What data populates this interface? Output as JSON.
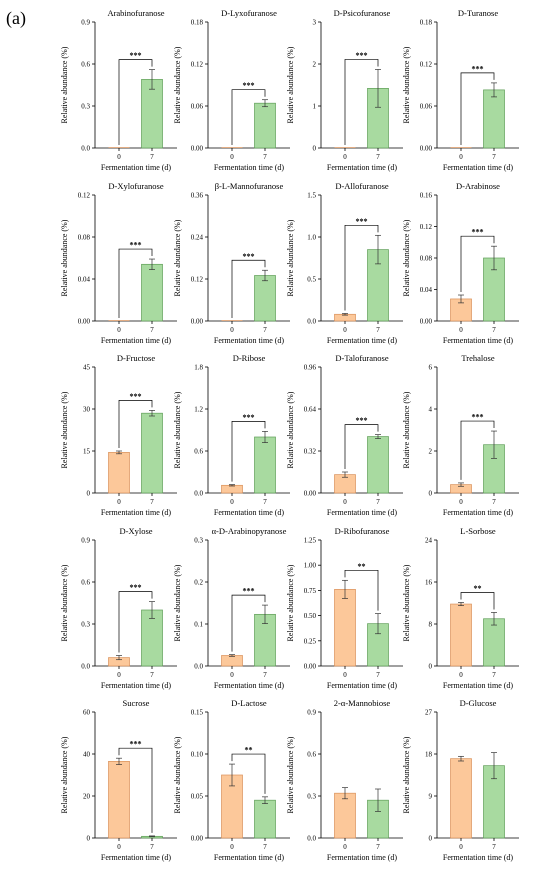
{
  "panel_label": "(a)",
  "colors": {
    "day0_fill": "#fcc89a",
    "day0_stroke": "#d9915a",
    "day7_fill": "#a8daa0",
    "day7_stroke": "#5f9e57"
  },
  "chart_data": [
    {
      "type": "bar",
      "title": "Arabinofuranose",
      "xlabel": "Fermentation time (d)",
      "ylabel": "Relative abundance (%)",
      "categories": [
        "0",
        "7"
      ],
      "values": [
        0,
        0.49
      ],
      "errors": [
        0,
        0.07
      ],
      "ylim": [
        0,
        0.9
      ],
      "yticks": [
        "0.0",
        "0.3",
        "0.6",
        "0.9"
      ],
      "significance": "***"
    },
    {
      "type": "bar",
      "title": "D-Lyxofuranose",
      "xlabel": "Fermentation time (d)",
      "ylabel": "Relative abundance (%)",
      "categories": [
        "0",
        "7"
      ],
      "values": [
        0,
        0.064
      ],
      "errors": [
        0,
        0.005
      ],
      "ylim": [
        0,
        0.18
      ],
      "yticks": [
        "0.00",
        "0.06",
        "0.12",
        "0.18"
      ],
      "significance": "***"
    },
    {
      "type": "bar",
      "title": "D-Psicofuranose",
      "xlabel": "Fermentation time (d)",
      "ylabel": "Relative abundance (%)",
      "categories": [
        "0",
        "7"
      ],
      "values": [
        0,
        1.42
      ],
      "errors": [
        0,
        0.45
      ],
      "ylim": [
        0,
        3
      ],
      "yticks": [
        "0",
        "1",
        "2",
        "3"
      ],
      "significance": "***"
    },
    {
      "type": "bar",
      "title": "D-Turanose",
      "xlabel": "Fermentation time (d)",
      "ylabel": "Relative abundance (%)",
      "categories": [
        "0",
        "7"
      ],
      "values": [
        0,
        0.083
      ],
      "errors": [
        0,
        0.01
      ],
      "ylim": [
        0,
        0.18
      ],
      "yticks": [
        "0.00",
        "0.06",
        "0.12",
        "0.18"
      ],
      "significance": "***"
    },
    {
      "type": "bar",
      "title": "D-Xylofuranose",
      "xlabel": "Fermentation time (d)",
      "ylabel": "Relative abundance (%)",
      "categories": [
        "0",
        "7"
      ],
      "values": [
        0,
        0.054
      ],
      "errors": [
        0,
        0.005
      ],
      "ylim": [
        0,
        0.12
      ],
      "yticks": [
        "0.00",
        "0.04",
        "0.08",
        "0.12"
      ],
      "significance": "***"
    },
    {
      "type": "bar",
      "title": "β-L-Mannofuranose",
      "xlabel": "Fermentation time (d)",
      "ylabel": "Relative abundance (%)",
      "categories": [
        "0",
        "7"
      ],
      "values": [
        0,
        0.13
      ],
      "errors": [
        0,
        0.015
      ],
      "ylim": [
        0,
        0.36
      ],
      "yticks": [
        "0.00",
        "0.12",
        "0.24",
        "0.36"
      ],
      "significance": "***"
    },
    {
      "type": "bar",
      "title": "D-Allofuranose",
      "xlabel": "Fermentation time (d)",
      "ylabel": "Relative abundance (%)",
      "categories": [
        "0",
        "7"
      ],
      "values": [
        0.08,
        0.85
      ],
      "errors": [
        0.01,
        0.17
      ],
      "ylim": [
        0,
        1.5
      ],
      "yticks": [
        "0.0",
        "0.5",
        "1.0",
        "1.5"
      ],
      "significance": "***"
    },
    {
      "type": "bar",
      "title": "D-Arabinose",
      "xlabel": "Fermentation time (d)",
      "ylabel": "Relative abundance (%)",
      "categories": [
        "0",
        "7"
      ],
      "values": [
        0.028,
        0.08
      ],
      "errors": [
        0.005,
        0.015
      ],
      "ylim": [
        0,
        0.16
      ],
      "yticks": [
        "0.00",
        "0.04",
        "0.08",
        "0.12",
        "0.16"
      ],
      "significance": "***"
    },
    {
      "type": "bar",
      "title": "D-Fructose",
      "xlabel": "Fermentation time (d)",
      "ylabel": "Relative abundance (%)",
      "categories": [
        "0",
        "7"
      ],
      "values": [
        14.5,
        28.5
      ],
      "errors": [
        0.5,
        1.0
      ],
      "ylim": [
        0,
        45
      ],
      "yticks": [
        "0",
        "15",
        "30",
        "45"
      ],
      "significance": "***"
    },
    {
      "type": "bar",
      "title": "D-Ribose",
      "xlabel": "Fermentation time (d)",
      "ylabel": "Relative abundance (%)",
      "categories": [
        "0",
        "7"
      ],
      "values": [
        0.11,
        0.8
      ],
      "errors": [
        0.01,
        0.08
      ],
      "ylim": [
        0,
        1.8
      ],
      "yticks": [
        "0.0",
        "0.6",
        "1.2",
        "1.8"
      ],
      "significance": "***"
    },
    {
      "type": "bar",
      "title": "D-Talofuranose",
      "xlabel": "Fermentation time (d)",
      "ylabel": "Relative abundance (%)",
      "categories": [
        "0",
        "7"
      ],
      "values": [
        0.14,
        0.43
      ],
      "errors": [
        0.02,
        0.015
      ],
      "ylim": [
        0,
        0.96
      ],
      "yticks": [
        "0.00",
        "0.32",
        "0.64",
        "0.96"
      ],
      "significance": "***"
    },
    {
      "type": "bar",
      "title": "Trehalose",
      "xlabel": "Fermentation time (d)",
      "ylabel": "Relative abundance (%)",
      "categories": [
        "0",
        "7"
      ],
      "values": [
        0.4,
        2.3
      ],
      "errors": [
        0.08,
        0.65
      ],
      "ylim": [
        0,
        6
      ],
      "yticks": [
        "0",
        "2",
        "4",
        "6"
      ],
      "significance": "***"
    },
    {
      "type": "bar",
      "title": "D-Xylose",
      "xlabel": "Fermentation time (d)",
      "ylabel": "Relative abundance (%)",
      "categories": [
        "0",
        "7"
      ],
      "values": [
        0.06,
        0.4
      ],
      "errors": [
        0.015,
        0.06
      ],
      "ylim": [
        0,
        0.9
      ],
      "yticks": [
        "0.0",
        "0.3",
        "0.6",
        "0.9"
      ],
      "significance": "***"
    },
    {
      "type": "bar",
      "title": "α-D-Arabinopyranose",
      "xlabel": "Fermentation time (d)",
      "ylabel": "Relative abundance (%)",
      "categories": [
        "0",
        "7"
      ],
      "values": [
        0.025,
        0.123
      ],
      "errors": [
        0.002,
        0.022
      ],
      "ylim": [
        0,
        0.3
      ],
      "yticks": [
        "0.0",
        "0.1",
        "0.2",
        "0.3"
      ],
      "significance": "***"
    },
    {
      "type": "bar",
      "title": "D-Ribofuranose",
      "xlabel": "Fermentation time (d)",
      "ylabel": "Relative abundance (%)",
      "categories": [
        "0",
        "7"
      ],
      "values": [
        0.76,
        0.42
      ],
      "errors": [
        0.09,
        0.1
      ],
      "ylim": [
        0,
        1.25
      ],
      "yticks": [
        "0.00",
        "0.25",
        "0.50",
        "0.75",
        "1.00",
        "1.25"
      ],
      "significance": "**"
    },
    {
      "type": "bar",
      "title": "L-Sorbose",
      "xlabel": "Fermentation time (d)",
      "ylabel": "Relative abundance (%)",
      "categories": [
        "0",
        "7"
      ],
      "values": [
        11.8,
        9.0
      ],
      "errors": [
        0.3,
        1.2
      ],
      "ylim": [
        0,
        24
      ],
      "yticks": [
        "0",
        "8",
        "16",
        "24"
      ],
      "significance": "**"
    },
    {
      "type": "bar",
      "title": "Sucrose",
      "xlabel": "Fermentation time (d)",
      "ylabel": "Relative abundance (%)",
      "categories": [
        "0",
        "7"
      ],
      "values": [
        36.5,
        0.8
      ],
      "errors": [
        1.5,
        0.2
      ],
      "ylim": [
        0,
        60
      ],
      "yticks": [
        "0",
        "20",
        "40",
        "60"
      ],
      "significance": "***"
    },
    {
      "type": "bar",
      "title": "D-Lactose",
      "xlabel": "Fermentation time (d)",
      "ylabel": "Relative abundance (%)",
      "categories": [
        "0",
        "7"
      ],
      "values": [
        0.075,
        0.045
      ],
      "errors": [
        0.013,
        0.004
      ],
      "ylim": [
        0,
        0.15
      ],
      "yticks": [
        "0.00",
        "0.05",
        "0.10",
        "0.15"
      ],
      "significance": "**"
    },
    {
      "type": "bar",
      "title": "2-α-Mannobiose",
      "xlabel": "Fermentation time (d)",
      "ylabel": "Relative abundance (%)",
      "categories": [
        "0",
        "7"
      ],
      "values": [
        0.32,
        0.27
      ],
      "errors": [
        0.04,
        0.08
      ],
      "ylim": [
        0,
        0.9
      ],
      "yticks": [
        "0.0",
        "0.3",
        "0.6",
        "0.9"
      ],
      "significance": ""
    },
    {
      "type": "bar",
      "title": "D-Glucose",
      "xlabel": "Fermentation time (d)",
      "ylabel": "Relative abundance (%)",
      "categories": [
        "0",
        "7"
      ],
      "values": [
        17.0,
        15.5
      ],
      "errors": [
        0.5,
        2.8
      ],
      "ylim": [
        0,
        27
      ],
      "yticks": [
        "0",
        "9",
        "18",
        "27"
      ],
      "significance": ""
    }
  ]
}
